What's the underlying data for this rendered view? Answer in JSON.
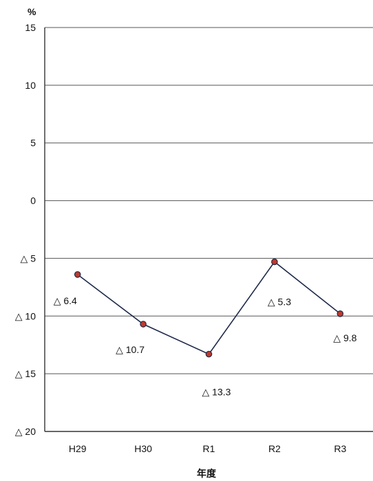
{
  "chart_data": {
    "type": "line",
    "title": "",
    "unit_label": "%",
    "xlabel": "年度",
    "ylabel": "",
    "categories": [
      "H29",
      "H30",
      "R1",
      "R2",
      "R3"
    ],
    "series": [
      {
        "values": [
          -6.4,
          -10.7,
          -13.3,
          -5.3,
          -9.8
        ],
        "labels": [
          "△ 6.4",
          "△ 10.7",
          "△ 13.3",
          "△ 5.3",
          "△ 9.8"
        ]
      }
    ],
    "ylim": [
      -20,
      15
    ],
    "yticks": [
      15,
      10,
      5,
      0,
      -5,
      -10,
      -15,
      -20
    ],
    "ytick_labels": [
      "15",
      "10",
      "5",
      "0",
      "△ 5",
      "△ 10",
      "△ 15",
      "△ 20"
    ],
    "grid": true,
    "legend": "none",
    "colors": {
      "line": "#1f2a4a",
      "marker": "#c0392b",
      "grid": "#555555",
      "axis": "#333333"
    }
  }
}
